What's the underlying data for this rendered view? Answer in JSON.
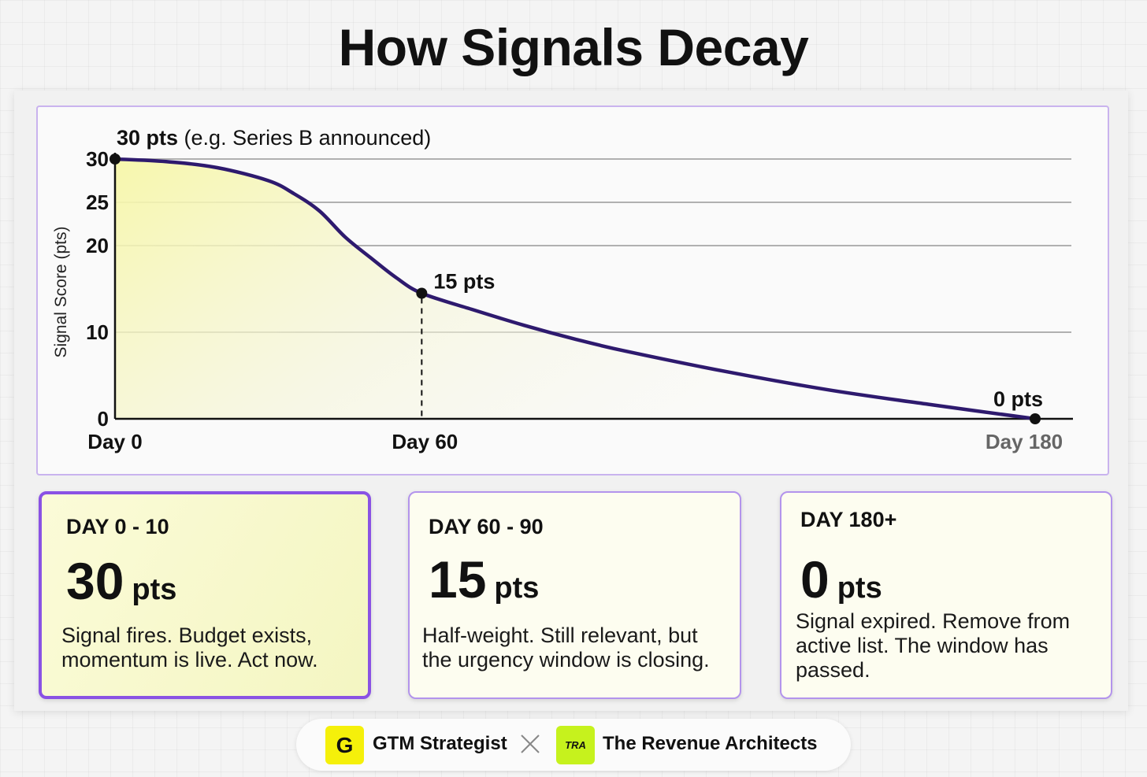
{
  "header": {
    "title": "How Signals Decay"
  },
  "chart_data": {
    "type": "area",
    "title": "How Signals Decay",
    "ylabel": "Signal Score (pts)",
    "xlabel": "",
    "ylim": [
      0,
      30
    ],
    "xlim": [
      0,
      180
    ],
    "y_ticks": [
      0,
      10,
      20,
      25,
      30
    ],
    "x_ticks": [
      {
        "value": 0,
        "label": "Day 0"
      },
      {
        "value": 60,
        "label": "Day 60"
      },
      {
        "value": 180,
        "label": "Day 180"
      }
    ],
    "grid": true,
    "series": [
      {
        "x": [
          0,
          10,
          20,
          30,
          35,
          40,
          45,
          50,
          55,
          60,
          70,
          80,
          90,
          100,
          120,
          140,
          160,
          180
        ],
        "y": [
          30,
          29.7,
          29,
          27.5,
          26,
          24,
          21,
          18.6,
          16.3,
          14.5,
          12.6,
          10.8,
          9.2,
          7.8,
          5.4,
          3.3,
          1.6,
          0
        ]
      }
    ],
    "annotations": [
      {
        "x": 0,
        "y": 30,
        "label_bold": "30 pts",
        "label_rest": "(e.g. Series B announced)"
      },
      {
        "x": 60,
        "y": 14.5,
        "label_bold": "15 pts",
        "label_rest": ""
      },
      {
        "x": 180,
        "y": 0,
        "label_bold": "0 pts",
        "label_rest": ""
      }
    ],
    "colors": {
      "line": "#2e1a6e",
      "fill_start": "#f7f7a8",
      "grid": "#b0b0b0"
    }
  },
  "cards": [
    {
      "range": "DAY 0 - 10",
      "score": "30",
      "unit": "pts",
      "desc": [
        "Signal fires. Budget exists,",
        "momentum is live. Act now."
      ]
    },
    {
      "range": "DAY 60 - 90",
      "score": "15",
      "unit": "pts",
      "desc": [
        "Half-weight. Still relevant, but",
        "the urgency window is closing."
      ]
    },
    {
      "range": "DAY 180+",
      "score": "0",
      "unit": "pts",
      "desc": [
        "Signal expired. Remove from",
        "active list. The window has",
        "passed."
      ]
    }
  ],
  "footer": {
    "brand_one": "GTM Strategist",
    "brand_one_logo": "G",
    "brand_two": "The Revenue Architects",
    "brand_two_logo": "TRA"
  }
}
